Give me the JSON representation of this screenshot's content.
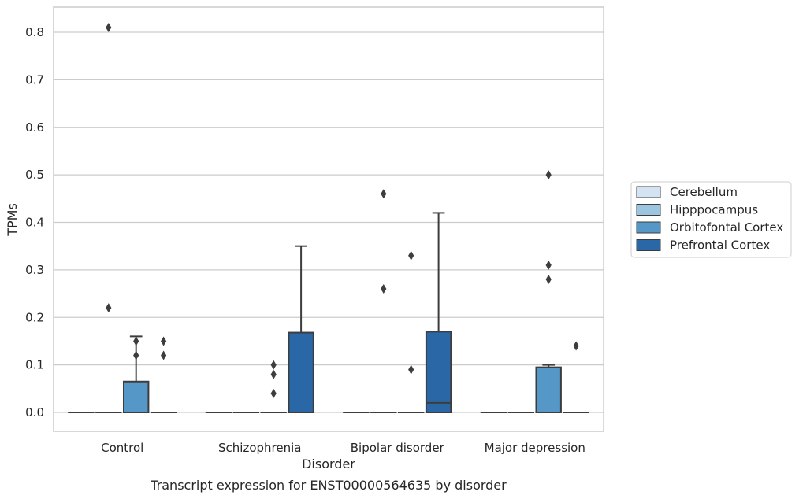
{
  "chart_data": {
    "type": "box",
    "caption": "Transcript expression for ENST00000564635 by disorder",
    "xlabel": "Disorder",
    "ylabel": "TPMs",
    "ylim": [
      -0.04,
      0.85
    ],
    "yticks": [
      "0.0",
      "0.1",
      "0.2",
      "0.3",
      "0.4",
      "0.5",
      "0.6",
      "0.7",
      "0.8"
    ],
    "categories": [
      "Control",
      "Schizophrenia",
      "Bipolar disorder",
      "Major depression"
    ],
    "grid": "horizontal",
    "legend_position": "right",
    "colors": {
      "Cerebellum": "#d3e3f2",
      "Hipppocampus": "#9cc5df",
      "Orbitofontal Cortex": "#5597c6",
      "Prefrontal Cortex": "#2a67a6"
    },
    "series": [
      {
        "name": "Cerebellum",
        "boxes": [
          {
            "q1": 0,
            "median": 0,
            "q3": 0,
            "whisker_low": 0,
            "whisker_high": 0,
            "outliers": []
          },
          {
            "q1": 0,
            "median": 0,
            "q3": 0,
            "whisker_low": 0,
            "whisker_high": 0,
            "outliers": []
          },
          {
            "q1": 0,
            "median": 0,
            "q3": 0,
            "whisker_low": 0,
            "whisker_high": 0,
            "outliers": []
          },
          {
            "q1": 0,
            "median": 0,
            "q3": 0,
            "whisker_low": 0,
            "whisker_high": 0,
            "outliers": []
          }
        ]
      },
      {
        "name": "Hipppocampus",
        "boxes": [
          {
            "q1": 0,
            "median": 0,
            "q3": 0,
            "whisker_low": 0,
            "whisker_high": 0,
            "outliers": [
              0.81,
              0.22
            ]
          },
          {
            "q1": 0,
            "median": 0,
            "q3": 0,
            "whisker_low": 0,
            "whisker_high": 0,
            "outliers": []
          },
          {
            "q1": 0,
            "median": 0,
            "q3": 0,
            "whisker_low": 0,
            "whisker_high": 0,
            "outliers": [
              0.46,
              0.26
            ]
          },
          {
            "q1": 0,
            "median": 0,
            "q3": 0,
            "whisker_low": 0,
            "whisker_high": 0,
            "outliers": []
          }
        ]
      },
      {
        "name": "Orbitofontal Cortex",
        "boxes": [
          {
            "q1": 0,
            "median": 0,
            "q3": 0.065,
            "whisker_low": 0,
            "whisker_high": 0.16,
            "outliers": [
              0.15,
              0.12
            ]
          },
          {
            "q1": 0,
            "median": 0,
            "q3": 0,
            "whisker_low": 0,
            "whisker_high": 0,
            "outliers": [
              0.1,
              0.08,
              0.04
            ]
          },
          {
            "q1": 0,
            "median": 0,
            "q3": 0,
            "whisker_low": 0,
            "whisker_high": 0,
            "outliers": [
              0.33,
              0.09
            ]
          },
          {
            "q1": 0,
            "median": 0,
            "q3": 0.095,
            "whisker_low": 0,
            "whisker_high": 0.1,
            "outliers": [
              0.5,
              0.31,
              0.28
            ]
          }
        ]
      },
      {
        "name": "Prefrontal Cortex",
        "boxes": [
          {
            "q1": 0,
            "median": 0,
            "q3": 0,
            "whisker_low": 0,
            "whisker_high": 0,
            "outliers": [
              0.15,
              0.12
            ]
          },
          {
            "q1": 0,
            "median": 0,
            "q3": 0.168,
            "whisker_low": 0,
            "whisker_high": 0.35,
            "outliers": []
          },
          {
            "q1": 0,
            "median": 0.02,
            "q3": 0.17,
            "whisker_low": 0,
            "whisker_high": 0.42,
            "outliers": []
          },
          {
            "q1": 0,
            "median": 0,
            "q3": 0,
            "whisker_low": 0,
            "whisker_high": 0,
            "outliers": [
              0.14
            ]
          }
        ]
      }
    ]
  }
}
